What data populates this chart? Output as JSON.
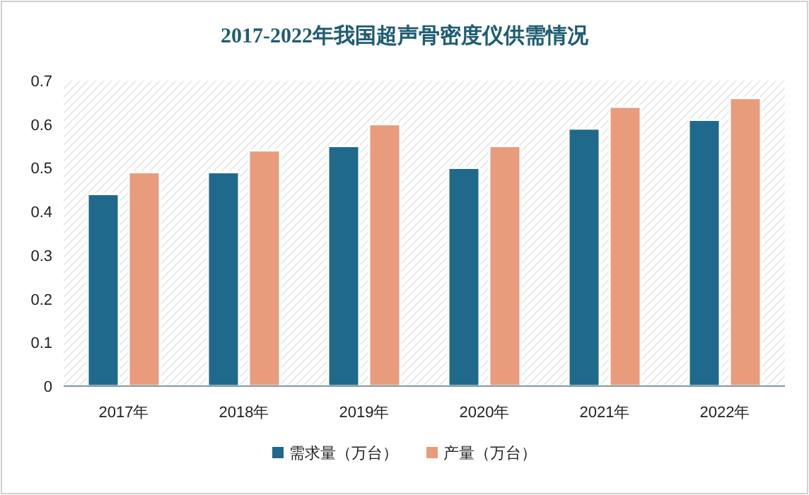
{
  "chart_data": {
    "type": "bar",
    "title": "2017-2022年我国超声骨密度仪供需情况",
    "categories": [
      "2017年",
      "2018年",
      "2019年",
      "2020年",
      "2021年",
      "2022年"
    ],
    "series": [
      {
        "name": "需求量（万台）",
        "color": "#1f6a8c",
        "values": [
          0.44,
          0.49,
          0.55,
          0.5,
          0.59,
          0.61
        ]
      },
      {
        "name": "产量（万台）",
        "color": "#e89c7c",
        "values": [
          0.49,
          0.54,
          0.6,
          0.55,
          0.64,
          0.66
        ]
      }
    ],
    "ylim": [
      0,
      0.7
    ],
    "yticks": [
      0,
      0.1,
      0.2,
      0.3,
      0.4,
      0.5,
      0.6,
      0.7
    ],
    "grid": false,
    "legend": "bottom"
  }
}
